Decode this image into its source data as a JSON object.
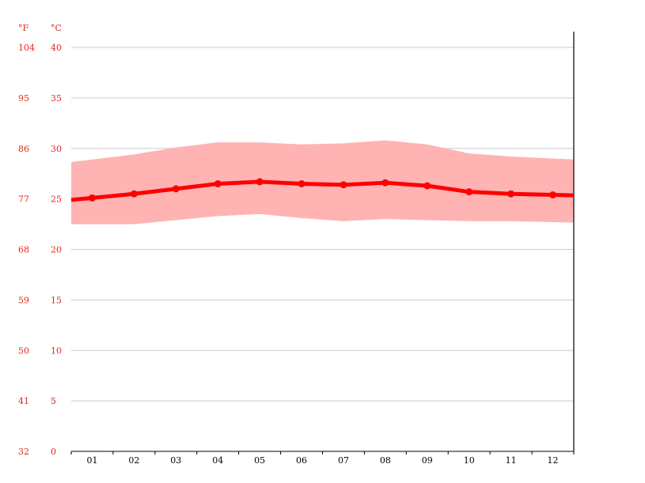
{
  "chart_data": {
    "type": "line",
    "units": {
      "fahrenheit": "°F",
      "celsius": "°C"
    },
    "categories": [
      "01",
      "02",
      "03",
      "04",
      "05",
      "06",
      "07",
      "08",
      "09",
      "10",
      "11",
      "12"
    ],
    "y_ticks_celsius": [
      0,
      5,
      10,
      15,
      20,
      25,
      30,
      35,
      40
    ],
    "y_ticks_fahrenheit": [
      32,
      41,
      50,
      59,
      68,
      77,
      86,
      95,
      104
    ],
    "ylim": [
      0,
      40
    ],
    "grid": true,
    "series": [
      {
        "values": [
          25.1,
          25.5,
          26.0,
          26.5,
          26.7,
          26.5,
          26.4,
          26.6,
          26.3,
          25.7,
          25.5,
          25.4
        ]
      }
    ],
    "band": {
      "low": [
        22.5,
        22.5,
        22.9,
        23.3,
        23.5,
        23.1,
        22.8,
        23.0,
        22.9,
        22.8,
        22.8,
        22.7
      ],
      "high": [
        28.9,
        29.4,
        30.1,
        30.6,
        30.6,
        30.4,
        30.5,
        30.8,
        30.4,
        29.5,
        29.2,
        29.0
      ]
    },
    "colors": {
      "line": "#ff0000",
      "band": "#ffb3b3",
      "axis_text": "#e8241a",
      "grid": "#cccccc"
    }
  }
}
